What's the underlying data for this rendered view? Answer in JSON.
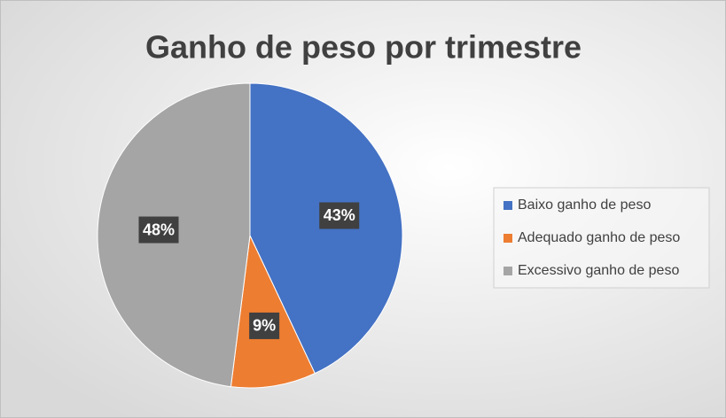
{
  "chart_data": {
    "type": "pie",
    "title": "Ganho de peso por trimestre",
    "categories": [
      "Baixo ganho de peso",
      "Adequado ganho de peso",
      "Excessivo ganho de peso"
    ],
    "values": [
      43,
      9,
      48
    ],
    "value_labels": [
      "43%",
      "9%",
      "48%"
    ],
    "colors": [
      "#4472c4",
      "#ed7d31",
      "#a5a5a5"
    ],
    "legend": "right"
  }
}
